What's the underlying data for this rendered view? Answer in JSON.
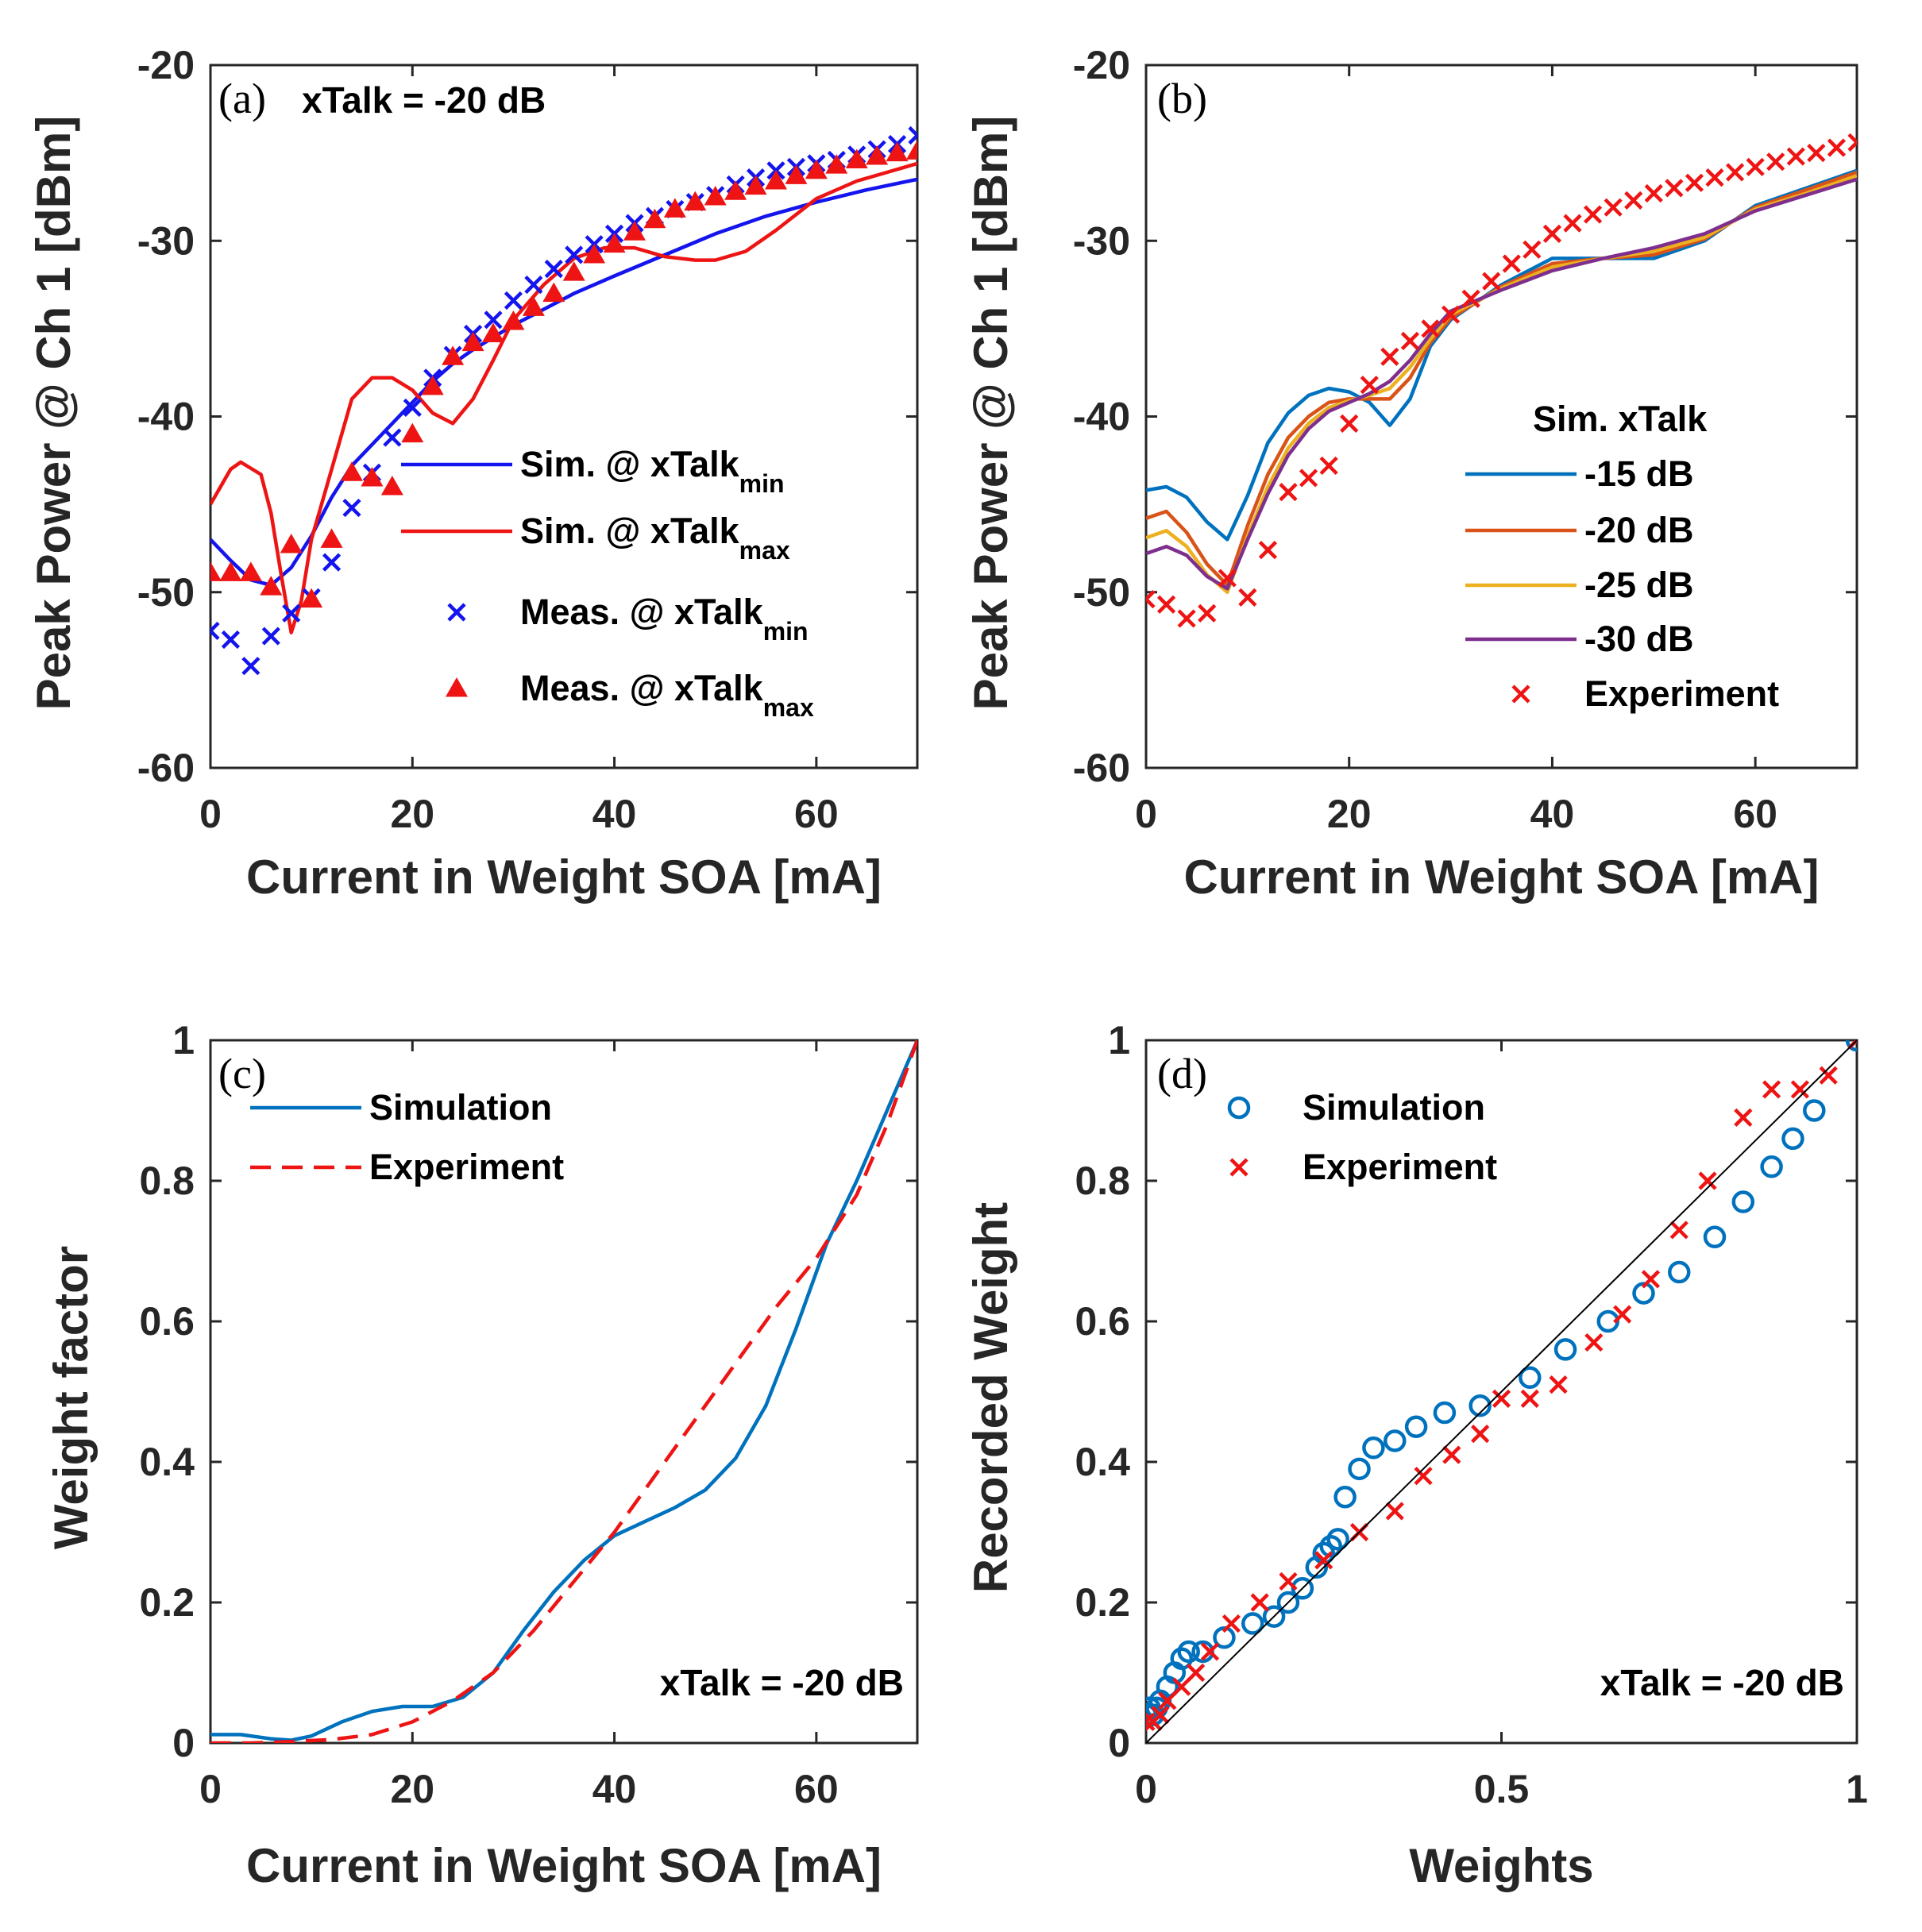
{
  "chart_data": [
    {
      "id": "a",
      "type": "line",
      "panel_label": "(a)",
      "annotation": "xTalk = -20 dB",
      "xlabel": "Current in Weight SOA [mA]",
      "ylabel": "Peak Power @ Ch 1 [dBm]",
      "xlim": [
        0,
        70
      ],
      "ylim": [
        -60,
        -20
      ],
      "xticks": [
        0,
        20,
        40,
        60
      ],
      "xtick_labels": [
        "0",
        "20",
        "40",
        "60"
      ],
      "yticks": [
        -60,
        -50,
        -40,
        -30,
        -20
      ],
      "ytick_labels": [
        "-60",
        "-50",
        "-40",
        "-30",
        "-20"
      ],
      "legend": {
        "position": "center-right",
        "entries": [
          {
            "base": "Sim. @ xTalk",
            "sub": "min"
          },
          {
            "base": "Sim. @ xTalk",
            "sub": "max"
          },
          {
            "base": "Meas. @ xTalk",
            "sub": "min"
          },
          {
            "base": "Meas. @ xTalk",
            "sub": "max"
          }
        ]
      },
      "series": [
        {
          "name": "Sim. @ xTalk_min",
          "style": "line",
          "color": "#1414ee",
          "x": [
            0,
            2,
            4,
            6,
            8,
            10,
            12,
            14,
            16,
            18,
            20,
            22,
            24,
            26,
            28,
            30,
            32,
            34,
            36,
            38,
            40,
            45,
            50,
            55,
            60,
            65,
            70
          ],
          "y": [
            -47,
            -48.2,
            -49.3,
            -49.6,
            -48.6,
            -46.8,
            -44.6,
            -42.8,
            -41.6,
            -40.4,
            -39.2,
            -38,
            -37,
            -36.2,
            -35.5,
            -34.8,
            -34.2,
            -33.6,
            -33,
            -32.5,
            -32,
            -30.8,
            -29.6,
            -28.6,
            -27.8,
            -27.1,
            -26.5
          ]
        },
        {
          "name": "Sim. @ xTalk_max",
          "style": "line",
          "color": "#ee1414",
          "x": [
            0,
            2,
            3,
            5,
            6,
            7,
            8,
            9,
            10,
            12,
            14,
            16,
            18,
            20,
            22,
            24,
            26,
            28,
            30,
            33,
            36,
            39,
            42,
            45,
            48,
            50,
            53,
            56,
            60,
            64,
            67,
            70
          ],
          "y": [
            -45,
            -43,
            -42.6,
            -43.3,
            -45.5,
            -49,
            -52.3,
            -50.5,
            -47,
            -43,
            -39,
            -37.8,
            -37.8,
            -38.5,
            -39.8,
            -40.4,
            -39,
            -36.8,
            -34.5,
            -32.5,
            -31,
            -30.4,
            -30.4,
            -30.9,
            -31.1,
            -31.1,
            -30.6,
            -29.4,
            -27.6,
            -26.6,
            -26.1,
            -25.6
          ]
        },
        {
          "name": "Meas. @ xTalk_min",
          "style": "marker",
          "marker": "x",
          "color": "#1414ee",
          "x": [
            0,
            2,
            4,
            6,
            8,
            10,
            12,
            14,
            16,
            18,
            20,
            22,
            24,
            26,
            28,
            30,
            32,
            34,
            36,
            38,
            40,
            42,
            44,
            46,
            48,
            50,
            52,
            54,
            56,
            58,
            60,
            62,
            64,
            66,
            68,
            70
          ],
          "y": [
            -52.2,
            -52.7,
            -54.2,
            -52.5,
            -51.2,
            -50.3,
            -48.3,
            -45.2,
            -43.2,
            -41.2,
            -39.5,
            -37.8,
            -36.5,
            -35.3,
            -34.5,
            -33.4,
            -32.5,
            -31.6,
            -30.8,
            -30.2,
            -29.6,
            -29,
            -28.6,
            -28.2,
            -27.8,
            -27.4,
            -26.8,
            -26.4,
            -26,
            -25.8,
            -25.6,
            -25.4,
            -25.1,
            -24.8,
            -24.5,
            -24
          ]
        },
        {
          "name": "Meas. @ xTalk_max",
          "style": "marker",
          "marker": "triangle",
          "color": "#ee1414",
          "x": [
            0,
            2,
            4,
            6,
            8,
            10,
            12,
            14,
            16,
            18,
            20,
            22,
            24,
            26,
            28,
            30,
            32,
            34,
            36,
            38,
            40,
            42,
            44,
            46,
            48,
            50,
            52,
            54,
            56,
            58,
            60,
            62,
            64,
            66,
            68,
            70
          ],
          "y": [
            -48.9,
            -48.9,
            -48.9,
            -49.7,
            -47.3,
            -50.4,
            -47,
            -43.2,
            -43.5,
            -44,
            -41,
            -38.3,
            -36.6,
            -35.8,
            -35.3,
            -34.6,
            -33.8,
            -33,
            -31.8,
            -30.8,
            -30.2,
            -29.5,
            -28.8,
            -28.2,
            -27.8,
            -27.5,
            -27.2,
            -26.9,
            -26.6,
            -26.3,
            -26,
            -25.7,
            -25.4,
            -25.2,
            -25,
            -24.9
          ]
        }
      ]
    },
    {
      "id": "b",
      "type": "line",
      "panel_label": "(b)",
      "xlabel": "Current in Weight SOA [mA]",
      "ylabel": "Peak Power @ Ch 1 [dBm]",
      "xlim": [
        0,
        70
      ],
      "ylim": [
        -60,
        -20
      ],
      "xticks": [
        0,
        20,
        40,
        60
      ],
      "xtick_labels": [
        "0",
        "20",
        "40",
        "60"
      ],
      "yticks": [
        -60,
        -50,
        -40,
        -30,
        -20
      ],
      "ytick_labels": [
        "-60",
        "-50",
        "-40",
        "-30",
        "-20"
      ],
      "legend": {
        "position": "bottom-right",
        "title": "Sim. xTalk",
        "entries": [
          "-15 dB",
          "-20 dB",
          "-25 dB",
          "-30 dB",
          "Experiment"
        ]
      },
      "series": [
        {
          "name": "-15 dB",
          "style": "line",
          "color": "#0072bd",
          "x": [
            0,
            2,
            4,
            6,
            8,
            10,
            12,
            14,
            16,
            18,
            20,
            22,
            24,
            26,
            28,
            30,
            35,
            40,
            45,
            50,
            55,
            60,
            65,
            70
          ],
          "y": [
            -44.2,
            -44,
            -44.6,
            -46,
            -47,
            -44.5,
            -41.5,
            -39.8,
            -38.8,
            -38.4,
            -38.6,
            -39.2,
            -40.5,
            -39,
            -36,
            -34.5,
            -32.5,
            -31,
            -31,
            -31,
            -30,
            -28,
            -27,
            -26
          ]
        },
        {
          "name": "-20 dB",
          "style": "line",
          "color": "#d95319",
          "x": [
            0,
            2,
            4,
            6,
            8,
            10,
            12,
            14,
            16,
            18,
            20,
            22,
            24,
            26,
            28,
            30,
            35,
            40,
            45,
            50,
            55,
            60,
            65,
            70
          ],
          "y": [
            -45.8,
            -45.4,
            -46.6,
            -48.4,
            -49.6,
            -46.2,
            -43.3,
            -41.2,
            -40,
            -39.2,
            -39,
            -39,
            -39,
            -37.8,
            -35.8,
            -34.4,
            -32.6,
            -31.3,
            -31,
            -30.8,
            -29.9,
            -28.1,
            -27.1,
            -26.1
          ]
        },
        {
          "name": "-25 dB",
          "style": "line",
          "color": "#edb120",
          "x": [
            0,
            2,
            4,
            6,
            8,
            10,
            12,
            14,
            16,
            18,
            20,
            22,
            24,
            26,
            28,
            30,
            35,
            40,
            45,
            50,
            55,
            60,
            65,
            70
          ],
          "y": [
            -46.9,
            -46.5,
            -47.4,
            -49,
            -50,
            -46.8,
            -44,
            -41.8,
            -40.4,
            -39.5,
            -39.1,
            -38.8,
            -38.4,
            -37.2,
            -35.6,
            -34.2,
            -32.7,
            -31.5,
            -31,
            -30.6,
            -29.8,
            -28.2,
            -27.3,
            -26.3
          ]
        },
        {
          "name": "-30 dB",
          "style": "line",
          "color": "#7e2f8e",
          "x": [
            0,
            2,
            4,
            6,
            8,
            10,
            12,
            14,
            16,
            18,
            20,
            22,
            24,
            26,
            28,
            30,
            35,
            40,
            45,
            50,
            55,
            60,
            65,
            70
          ],
          "y": [
            -47.8,
            -47.4,
            -47.9,
            -49.1,
            -49.8,
            -47,
            -44.4,
            -42.2,
            -40.7,
            -39.7,
            -39.2,
            -38.7,
            -38,
            -36.8,
            -35.3,
            -34,
            -32.8,
            -31.7,
            -31,
            -30.4,
            -29.6,
            -28.3,
            -27.4,
            -26.5
          ]
        },
        {
          "name": "Experiment",
          "style": "marker",
          "marker": "x",
          "color": "#ee1414",
          "x": [
            0,
            2,
            4,
            6,
            8,
            10,
            12,
            14,
            16,
            18,
            20,
            22,
            24,
            26,
            28,
            30,
            32,
            34,
            36,
            38,
            40,
            42,
            44,
            46,
            48,
            50,
            52,
            54,
            56,
            58,
            60,
            62,
            64,
            66,
            68,
            70
          ],
          "y": [
            -50.4,
            -50.7,
            -51.5,
            -51.2,
            -49.2,
            -50.3,
            -47.6,
            -44.3,
            -43.5,
            -42.8,
            -40.4,
            -38.2,
            -36.6,
            -35.7,
            -35,
            -34.2,
            -33.3,
            -32.3,
            -31.3,
            -30.5,
            -29.6,
            -29,
            -28.5,
            -28.1,
            -27.7,
            -27.3,
            -27,
            -26.7,
            -26.4,
            -26.1,
            -25.8,
            -25.5,
            -25.2,
            -25,
            -24.7,
            -24.4
          ]
        }
      ]
    },
    {
      "id": "c",
      "type": "line",
      "panel_label": "(c)",
      "annotation": "xTalk = -20 dB",
      "xlabel": "Current in Weight SOA [mA]",
      "ylabel": "Weight factor",
      "xlim": [
        0,
        70
      ],
      "ylim": [
        0,
        1
      ],
      "xticks": [
        0,
        20,
        40,
        60
      ],
      "xtick_labels": [
        "0",
        "20",
        "40",
        "60"
      ],
      "yticks": [
        0,
        0.2,
        0.4,
        0.6,
        0.8,
        1
      ],
      "ytick_labels": [
        "0",
        "0.2",
        "0.4",
        "0.6",
        "0.8",
        "1"
      ],
      "legend": {
        "position": "top-left",
        "entries": [
          "Simulation",
          "Experiment"
        ]
      },
      "series": [
        {
          "name": "Simulation",
          "style": "line",
          "color": "#0072bd",
          "x": [
            0,
            3,
            6,
            8,
            10,
            13,
            16,
            19,
            22,
            25,
            28,
            31,
            34,
            37,
            40,
            43,
            46,
            49,
            52,
            55,
            58,
            61,
            64,
            67,
            70
          ],
          "y": [
            0.012,
            0.012,
            0.006,
            0.004,
            0.01,
            0.03,
            0.045,
            0.052,
            0.052,
            0.065,
            0.1,
            0.16,
            0.215,
            0.26,
            0.295,
            0.315,
            0.335,
            0.36,
            0.405,
            0.48,
            0.59,
            0.71,
            0.8,
            0.9,
            1.0
          ]
        },
        {
          "name": "Experiment",
          "style": "dashed",
          "color": "#ee1414",
          "x": [
            0,
            4,
            8,
            12,
            16,
            20,
            24,
            28,
            32,
            36,
            40,
            44,
            48,
            52,
            56,
            60,
            64,
            67,
            70
          ],
          "y": [
            0.0,
            0.0,
            0.002,
            0.005,
            0.012,
            0.03,
            0.06,
            0.1,
            0.16,
            0.23,
            0.3,
            0.38,
            0.46,
            0.54,
            0.62,
            0.69,
            0.78,
            0.88,
            1.0
          ]
        }
      ]
    },
    {
      "id": "d",
      "type": "scatter",
      "panel_label": "(d)",
      "annotation": "xTalk = -20 dB",
      "xlabel": "Weights",
      "ylabel": "Recorded Weight",
      "xlim": [
        0,
        1
      ],
      "ylim": [
        0,
        1
      ],
      "xticks": [
        0,
        0.5,
        1
      ],
      "xtick_labels": [
        "0",
        "0.5",
        "1"
      ],
      "yticks": [
        0,
        0.2,
        0.4,
        0.6,
        0.8,
        1
      ],
      "ytick_labels": [
        "0",
        "0.2",
        "0.4",
        "0.6",
        "0.8",
        "1"
      ],
      "legend": {
        "position": "top-left",
        "entries": [
          "Simulation",
          "Experiment"
        ]
      },
      "series": [
        {
          "name": "Simulation",
          "style": "marker",
          "marker": "circle",
          "color": "#0072bd",
          "x": [
            0,
            0.005,
            0.01,
            0.015,
            0.02,
            0.03,
            0.04,
            0.05,
            0.06,
            0.08,
            0.11,
            0.15,
            0.18,
            0.2,
            0.22,
            0.24,
            0.25,
            0.26,
            0.27,
            0.28,
            0.3,
            0.32,
            0.35,
            0.38,
            0.42,
            0.47,
            0.54,
            0.59,
            0.65,
            0.7,
            0.75,
            0.8,
            0.84,
            0.88,
            0.91,
            0.94,
            1.0
          ],
          "y": [
            0.04,
            0.05,
            0.04,
            0.05,
            0.06,
            0.08,
            0.1,
            0.12,
            0.13,
            0.13,
            0.15,
            0.17,
            0.18,
            0.2,
            0.22,
            0.25,
            0.27,
            0.28,
            0.29,
            0.35,
            0.39,
            0.42,
            0.43,
            0.45,
            0.47,
            0.48,
            0.52,
            0.56,
            0.6,
            0.64,
            0.67,
            0.72,
            0.77,
            0.82,
            0.86,
            0.9,
            1.0
          ]
        },
        {
          "name": "Experiment",
          "style": "marker",
          "marker": "x",
          "color": "#ee1414",
          "x": [
            0,
            0.01,
            0.02,
            0.03,
            0.05,
            0.07,
            0.09,
            0.12,
            0.16,
            0.2,
            0.25,
            0.3,
            0.35,
            0.39,
            0.43,
            0.47,
            0.5,
            0.54,
            0.58,
            0.63,
            0.67,
            0.71,
            0.75,
            0.79,
            0.84,
            0.88,
            0.92,
            0.96,
            1.0
          ],
          "y": [
            0.03,
            0.03,
            0.04,
            0.06,
            0.08,
            0.1,
            0.13,
            0.17,
            0.2,
            0.23,
            0.26,
            0.3,
            0.33,
            0.38,
            0.41,
            0.44,
            0.49,
            0.49,
            0.51,
            0.57,
            0.61,
            0.66,
            0.73,
            0.8,
            0.89,
            0.93,
            0.93,
            0.95,
            1.0
          ]
        },
        {
          "name": "reference",
          "style": "line",
          "color": "#000000",
          "x": [
            0,
            1
          ],
          "y": [
            0,
            1
          ]
        }
      ]
    }
  ]
}
